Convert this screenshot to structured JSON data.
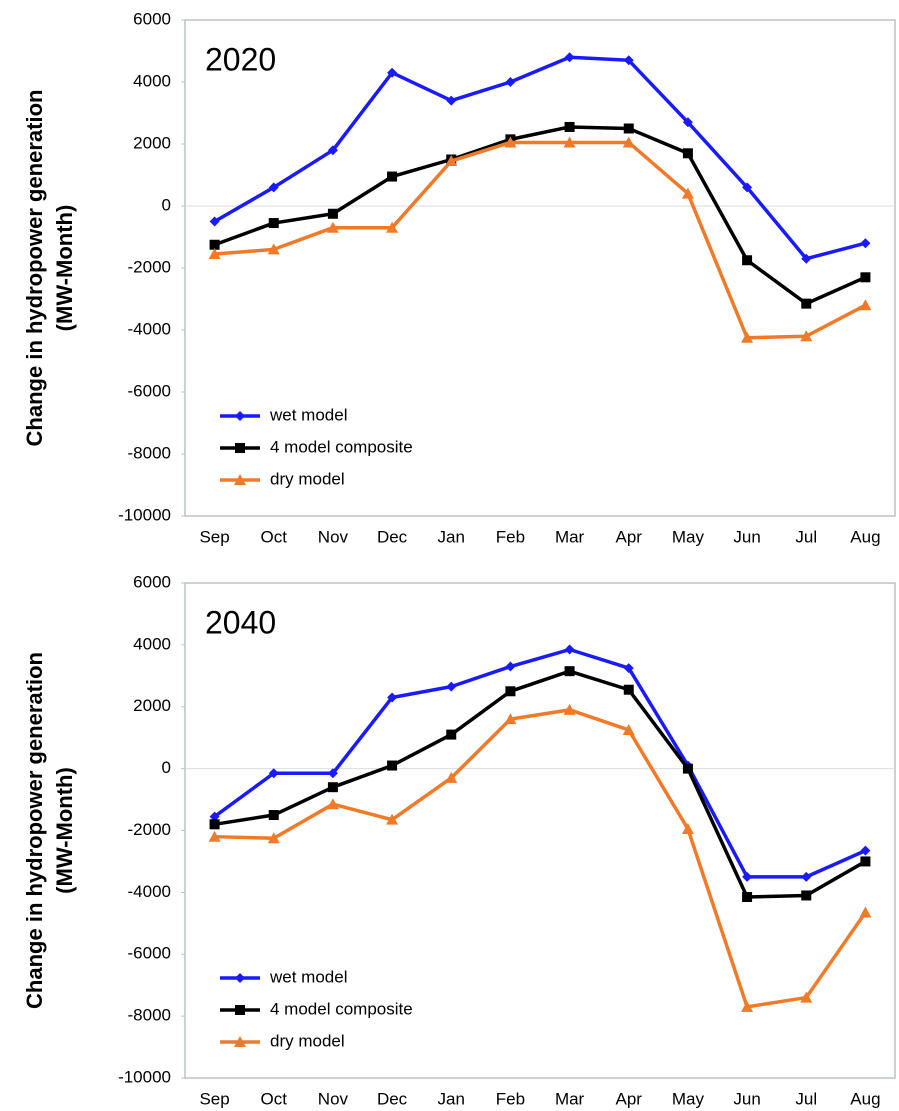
{
  "chart_data": [
    {
      "type": "line",
      "annotation": "2020",
      "ylabel": [
        "Change in hydropower generation",
        "(MW-Month)"
      ],
      "categories": [
        "Sep",
        "Oct",
        "Nov",
        "Dec",
        "Jan",
        "Feb",
        "Mar",
        "Apr",
        "May",
        "Jun",
        "Jul",
        "Aug"
      ],
      "series": [
        {
          "name": "wet model",
          "color": "#1a1aff",
          "marker": "diamond",
          "values": [
            -500,
            600,
            1800,
            4300,
            3400,
            4000,
            4800,
            4700,
            2700,
            600,
            -1700,
            -1200
          ]
        },
        {
          "name": "4 model composite",
          "color": "#000000",
          "marker": "square",
          "values": [
            -1250,
            -550,
            -250,
            950,
            1500,
            2150,
            2550,
            2500,
            1700,
            -1750,
            -3150,
            -2300
          ]
        },
        {
          "name": "dry model",
          "color": "#f07a28",
          "marker": "triangle",
          "values": [
            -1550,
            -1400,
            -700,
            -700,
            1450,
            2050,
            2050,
            2050,
            400,
            -4250,
            -4200,
            -3200
          ]
        }
      ],
      "ylim": [
        -10000,
        6000
      ],
      "yticks": [
        -10000,
        -8000,
        -6000,
        -4000,
        -2000,
        0,
        2000,
        4000,
        6000
      ],
      "zero_line": true,
      "legend": "lower left"
    },
    {
      "type": "line",
      "annotation": "2040",
      "ylabel": [
        "Change in hydropower generation",
        "(MW-Month)"
      ],
      "categories": [
        "Sep",
        "Oct",
        "Nov",
        "Dec",
        "Jan",
        "Feb",
        "Mar",
        "Apr",
        "May",
        "Jun",
        "Jul",
        "Aug"
      ],
      "series": [
        {
          "name": "wet model",
          "color": "#1a1aff",
          "marker": "diamond",
          "values": [
            -1550,
            -150,
            -150,
            2300,
            2650,
            3300,
            3850,
            3250,
            100,
            -3500,
            -3500,
            -2650
          ]
        },
        {
          "name": "4 model composite",
          "color": "#000000",
          "marker": "square",
          "values": [
            -1800,
            -1500,
            -600,
            100,
            1100,
            2500,
            3150,
            2550,
            0,
            -4150,
            -4100,
            -3000
          ]
        },
        {
          "name": "dry model",
          "color": "#f07a28",
          "marker": "triangle",
          "values": [
            -2200,
            -2250,
            -1150,
            -1650,
            -300,
            1600,
            1900,
            1250,
            -1950,
            -7700,
            -7400,
            -4650
          ]
        }
      ],
      "ylim": [
        -10000,
        6000
      ],
      "yticks": [
        -10000,
        -8000,
        -6000,
        -4000,
        -2000,
        0,
        2000,
        4000,
        6000
      ],
      "zero_line": true,
      "legend": "lower left"
    }
  ]
}
